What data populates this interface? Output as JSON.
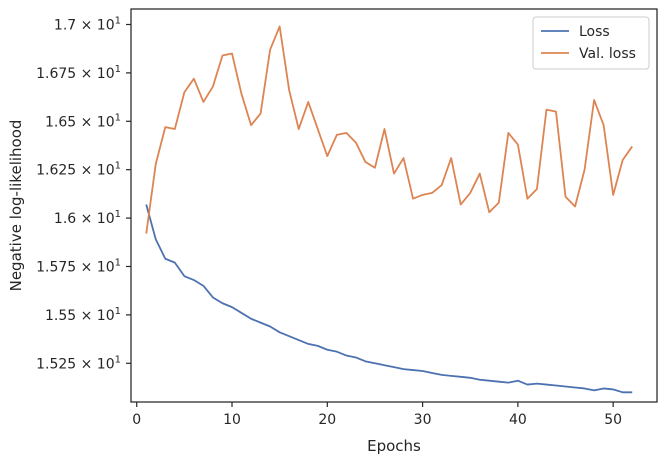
{
  "chart_data": {
    "type": "line",
    "xlabel": "Epochs",
    "ylabel": "Negative log-likelihood",
    "xlim": [
      -0.6,
      54.6
    ],
    "ylim": [
      15.05,
      17.08
    ],
    "grid": false,
    "legend_position": "top-right",
    "x_ticks": [
      {
        "value": 0,
        "label": "0"
      },
      {
        "value": 10,
        "label": "10"
      },
      {
        "value": 20,
        "label": "20"
      },
      {
        "value": 30,
        "label": "30"
      },
      {
        "value": 40,
        "label": "40"
      },
      {
        "value": 50,
        "label": "50"
      }
    ],
    "y_ticks": [
      {
        "value": 15.25,
        "mantissa": "1.525",
        "base": "10",
        "exponent": "1"
      },
      {
        "value": 15.5,
        "mantissa": "1.55",
        "base": "10",
        "exponent": "1"
      },
      {
        "value": 15.75,
        "mantissa": "1.575",
        "base": "10",
        "exponent": "1"
      },
      {
        "value": 16.0,
        "mantissa": "1.6",
        "base": "10",
        "exponent": "1"
      },
      {
        "value": 16.25,
        "mantissa": "1.625",
        "base": "10",
        "exponent": "1"
      },
      {
        "value": 16.5,
        "mantissa": "1.65",
        "base": "10",
        "exponent": "1"
      },
      {
        "value": 16.75,
        "mantissa": "1.675",
        "base": "10",
        "exponent": "1"
      },
      {
        "value": 17.0,
        "mantissa": "1.7",
        "base": "10",
        "exponent": "1"
      }
    ],
    "x": [
      1,
      2,
      3,
      4,
      5,
      6,
      7,
      8,
      9,
      10,
      11,
      12,
      13,
      14,
      15,
      16,
      17,
      18,
      19,
      20,
      21,
      22,
      23,
      24,
      25,
      26,
      27,
      28,
      29,
      30,
      31,
      32,
      33,
      34,
      35,
      36,
      37,
      38,
      39,
      40,
      41,
      42,
      43,
      44,
      45,
      46,
      47,
      48,
      49,
      50,
      51,
      52
    ],
    "series": [
      {
        "name": "Loss",
        "color": "#4c72b0",
        "values": [
          16.07,
          15.89,
          15.79,
          15.77,
          15.7,
          15.68,
          15.65,
          15.59,
          15.56,
          15.54,
          15.51,
          15.48,
          15.46,
          15.44,
          15.41,
          15.39,
          15.37,
          15.35,
          15.34,
          15.32,
          15.31,
          15.29,
          15.28,
          15.26,
          15.25,
          15.24,
          15.23,
          15.22,
          15.215,
          15.21,
          15.2,
          15.19,
          15.185,
          15.18,
          15.175,
          15.165,
          15.16,
          15.155,
          15.15,
          15.16,
          15.14,
          15.145,
          15.14,
          15.135,
          15.13,
          15.125,
          15.12,
          15.11,
          15.12,
          15.115,
          15.1,
          15.1
        ]
      },
      {
        "name": "Val. loss",
        "color": "#dd8452",
        "values": [
          15.92,
          16.28,
          16.47,
          16.46,
          16.65,
          16.72,
          16.6,
          16.68,
          16.84,
          16.85,
          16.64,
          16.48,
          16.54,
          16.87,
          16.99,
          16.66,
          16.46,
          16.6,
          16.46,
          16.32,
          16.43,
          16.44,
          16.39,
          16.29,
          16.26,
          16.46,
          16.23,
          16.31,
          16.1,
          16.12,
          16.13,
          16.17,
          16.31,
          16.07,
          16.13,
          16.23,
          16.03,
          16.08,
          16.44,
          16.38,
          16.1,
          16.15,
          16.56,
          16.55,
          16.11,
          16.06,
          16.25,
          16.61,
          16.48,
          16.12,
          16.3,
          16.37
        ]
      }
    ]
  }
}
